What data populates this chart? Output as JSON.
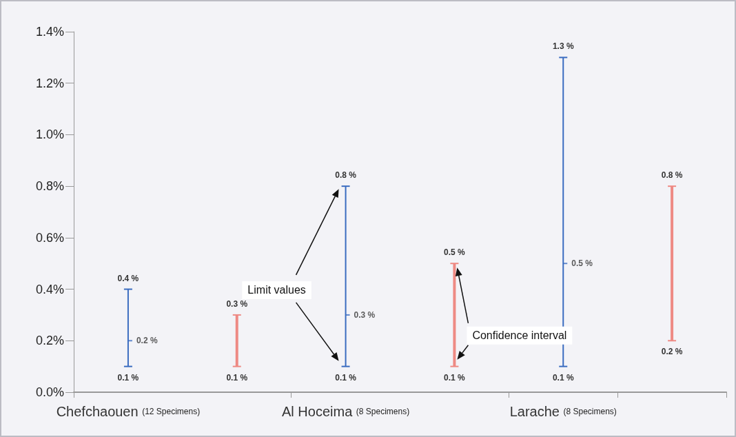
{
  "chart_data": {
    "type": "scatter",
    "categories": [
      "Chefchaouen (12 Specimens)",
      null,
      "Al Hoceima (8 Specimens)",
      null,
      "Larache (8 Specimens)",
      null
    ],
    "series": [
      {
        "color": "#3a6cc0",
        "values": [
          0.2,
          null,
          0.3,
          null,
          0.5,
          null
        ],
        "errors": [
          [
            0.1,
            0.4
          ],
          null,
          [
            0.1,
            0.8
          ],
          null,
          [
            0.1,
            1.3
          ],
          null
        ],
        "value_labels": [
          "0.2 %",
          null,
          "0.3 %",
          null,
          "0.5 %",
          null
        ]
      },
      {
        "type": "bar",
        "color": "#ee8a84",
        "base": [
          null,
          0.1,
          null,
          0.1,
          null,
          0.2
        ],
        "values": [
          null,
          0.2,
          null,
          0.4,
          null,
          0.6
        ]
      }
    ],
    "ylim": [
      0,
      1.4
    ],
    "yticks": [
      {
        "value": 0,
        "label": "0.0%"
      },
      {
        "value": 0.2,
        "label": "0.2%"
      },
      {
        "value": 0.4,
        "label": "0.4%"
      },
      {
        "value": 0.6,
        "label": "0.6%"
      },
      {
        "value": 0.8,
        "label": "0.8%"
      },
      {
        "value": 1.0,
        "label": "1.0%"
      },
      {
        "value": 1.2,
        "label": "1.2%"
      },
      {
        "value": 1.4,
        "label": "1.4%"
      }
    ],
    "annotations": [
      {
        "text": "0.4 %",
        "x": "Chefchaouen (12 Specimens)",
        "y": 0.4
      },
      {
        "text": "0.1 %",
        "x": "Chefchaouen (12 Specimens)",
        "y": 0.1
      },
      {
        "text": "0.3 %",
        "y": 0.3
      },
      {
        "text": "0.1 %",
        "y": 0.1
      },
      {
        "text": "0.8 %",
        "x": "Al Hoceima (8 Specimens)",
        "y": 0.8
      },
      {
        "text": "0.1 %",
        "x": "Al Hoceima (8 Specimens)",
        "y": 0.1
      },
      {
        "text": "0.5 %",
        "y": 0.5
      },
      {
        "text": "0.1 %",
        "y": 0.1
      },
      {
        "text": "1.3 %",
        "x": "Larache (8 Specimens)",
        "y": 1.3
      },
      {
        "text": "0.1 %",
        "x": "Larache (8 Specimens)",
        "y": 0.1
      },
      {
        "text": "0.8 %",
        "y": 0.8
      },
      {
        "text": "0.2 %",
        "y": 0.2
      },
      "Limit values",
      "Confidence interval"
    ]
  }
}
